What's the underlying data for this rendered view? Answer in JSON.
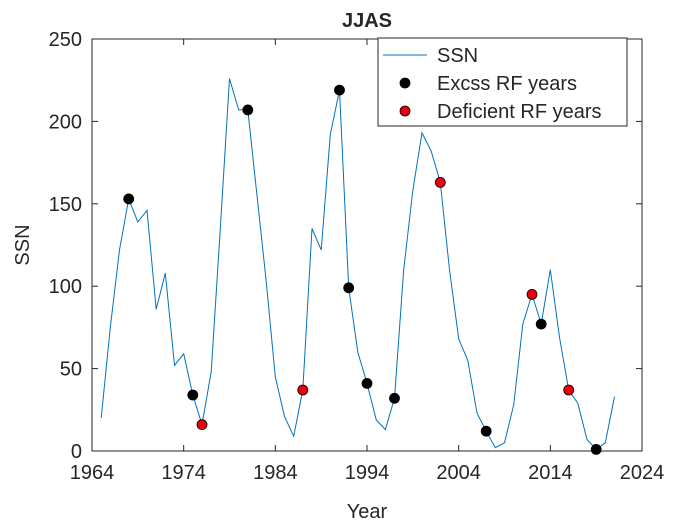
{
  "chart_data": {
    "type": "line",
    "title": "JJAS",
    "xlabel": "Year",
    "ylabel": "SSN",
    "xlim": [
      1964,
      2024
    ],
    "ylim": [
      0,
      250
    ],
    "xticks": [
      1964,
      1974,
      1984,
      1994,
      2004,
      2014,
      2024
    ],
    "yticks": [
      0,
      50,
      100,
      150,
      200,
      250
    ],
    "grid": false,
    "legend_position": "top-right",
    "series": [
      {
        "name": "SSN",
        "kind": "line",
        "color": "#0072BD",
        "x": [
          1965,
          1966,
          1967,
          1968,
          1969,
          1970,
          1971,
          1972,
          1973,
          1974,
          1975,
          1976,
          1977,
          1978,
          1979,
          1980,
          1981,
          1982,
          1983,
          1984,
          1985,
          1986,
          1987,
          1988,
          1989,
          1990,
          1991,
          1992,
          1993,
          1994,
          1995,
          1996,
          1997,
          1998,
          1999,
          2000,
          2001,
          2002,
          2003,
          2004,
          2005,
          2006,
          2007,
          2008,
          2009,
          2010,
          2011,
          2012,
          2013,
          2014,
          2015,
          2016,
          2017,
          2018,
          2019,
          2020,
          2021
        ],
        "y": [
          20,
          75,
          122,
          153,
          139,
          146,
          86,
          108,
          52,
          59,
          34,
          16,
          48,
          135,
          226,
          207,
          207,
          155,
          103,
          45,
          21,
          9,
          37,
          135,
          122,
          192,
          219,
          99,
          60,
          41,
          19,
          13,
          32,
          110,
          158,
          193,
          182,
          163,
          110,
          68,
          55,
          23,
          12,
          2,
          5,
          28,
          77,
          95,
          77,
          110,
          69,
          37,
          29,
          7,
          1,
          5,
          33
        ]
      },
      {
        "name": "Excss RF years",
        "kind": "points",
        "color": "#000000",
        "x": [
          1968,
          1975,
          1981,
          1991,
          1992,
          1994,
          1997,
          2007,
          2013,
          2019
        ],
        "y": [
          153,
          34,
          207,
          219,
          99,
          41,
          32,
          12,
          77,
          1
        ]
      },
      {
        "name": "Deficient RF years",
        "kind": "points",
        "color": "#E8000B",
        "x": [
          1976,
          1987,
          2002,
          2012,
          2016
        ],
        "y": [
          16,
          37,
          163,
          95,
          37
        ]
      }
    ]
  }
}
